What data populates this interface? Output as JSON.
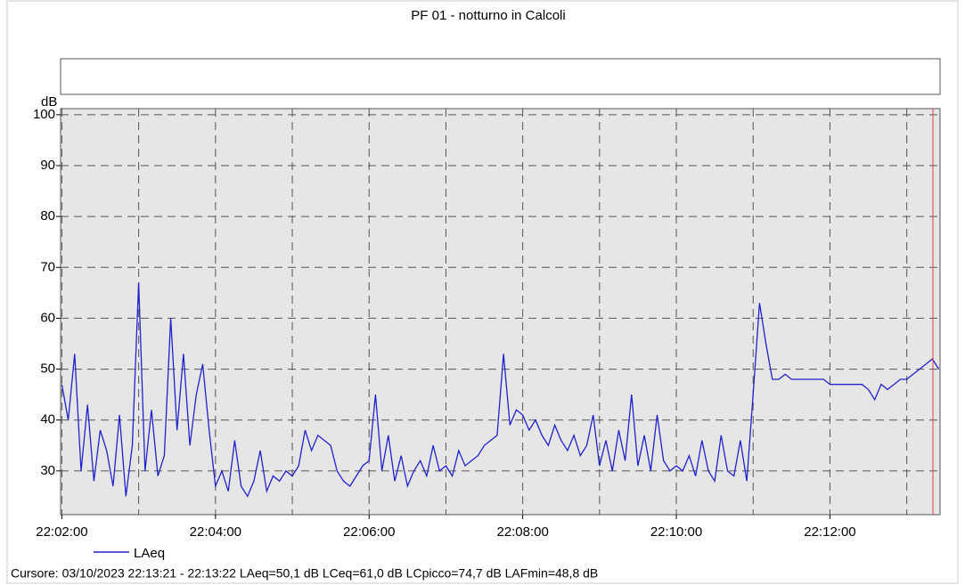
{
  "chart_data": {
    "type": "line",
    "title": "PF 01 - notturno in Calcoli",
    "y_unit": "dB",
    "x": [
      "22:02:00",
      "22:02:05",
      "22:02:10",
      "22:02:15",
      "22:02:20",
      "22:02:25",
      "22:02:30",
      "22:02:35",
      "22:02:40",
      "22:02:45",
      "22:02:50",
      "22:02:55",
      "22:03:00",
      "22:03:05",
      "22:03:10",
      "22:03:15",
      "22:03:20",
      "22:03:25",
      "22:03:30",
      "22:03:35",
      "22:03:40",
      "22:03:45",
      "22:03:50",
      "22:03:55",
      "22:04:00",
      "22:04:05",
      "22:04:10",
      "22:04:15",
      "22:04:20",
      "22:04:25",
      "22:04:30",
      "22:04:35",
      "22:04:40",
      "22:04:45",
      "22:04:50",
      "22:04:55",
      "22:05:00",
      "22:05:05",
      "22:05:10",
      "22:05:15",
      "22:05:20",
      "22:05:25",
      "22:05:30",
      "22:05:35",
      "22:05:40",
      "22:05:45",
      "22:05:50",
      "22:05:55",
      "22:06:00",
      "22:06:05",
      "22:06:10",
      "22:06:15",
      "22:06:20",
      "22:06:25",
      "22:06:30",
      "22:06:35",
      "22:06:40",
      "22:06:45",
      "22:06:50",
      "22:06:55",
      "22:07:00",
      "22:07:05",
      "22:07:10",
      "22:07:15",
      "22:07:20",
      "22:07:25",
      "22:07:30",
      "22:07:35",
      "22:07:40",
      "22:07:45",
      "22:07:50",
      "22:07:55",
      "22:08:00",
      "22:08:05",
      "22:08:10",
      "22:08:15",
      "22:08:20",
      "22:08:25",
      "22:08:30",
      "22:08:35",
      "22:08:40",
      "22:08:45",
      "22:08:50",
      "22:08:55",
      "22:09:00",
      "22:09:05",
      "22:09:10",
      "22:09:15",
      "22:09:20",
      "22:09:25",
      "22:09:30",
      "22:09:35",
      "22:09:40",
      "22:09:45",
      "22:09:50",
      "22:09:55",
      "22:10:00",
      "22:10:05",
      "22:10:10",
      "22:10:15",
      "22:10:20",
      "22:10:25",
      "22:10:30",
      "22:10:35",
      "22:10:40",
      "22:10:45",
      "22:10:50",
      "22:10:55",
      "22:11:00",
      "22:11:05",
      "22:11:10",
      "22:11:15",
      "22:11:20",
      "22:11:25",
      "22:11:30",
      "22:11:35",
      "22:11:40",
      "22:11:45",
      "22:11:50",
      "22:11:55",
      "22:12:00",
      "22:12:05",
      "22:12:10",
      "22:12:15",
      "22:12:20",
      "22:12:25",
      "22:12:30",
      "22:12:35",
      "22:12:40",
      "22:12:45",
      "22:12:50",
      "22:12:55",
      "22:13:00",
      "22:13:05",
      "22:13:10",
      "22:13:15",
      "22:13:20",
      "22:13:25"
    ],
    "series": [
      {
        "name": "LAeq",
        "color": "#2222cc",
        "values": [
          47,
          40,
          53,
          30,
          43,
          28,
          38,
          34,
          27,
          41,
          25,
          35,
          67,
          30,
          42,
          29,
          33,
          60,
          38,
          53,
          35,
          45,
          51,
          38,
          27,
          30,
          26,
          36,
          27,
          25,
          28,
          34,
          26,
          29,
          28,
          30,
          29,
          31,
          38,
          34,
          37,
          36,
          35,
          30,
          28,
          27,
          29,
          31,
          32,
          45,
          30,
          37,
          28,
          33,
          27,
          30,
          32,
          29,
          35,
          30,
          31,
          29,
          34,
          31,
          32,
          33,
          35,
          36,
          37,
          53,
          39,
          42,
          41,
          38,
          40,
          37,
          35,
          39,
          36,
          34,
          37,
          33,
          35,
          41,
          31,
          36,
          30,
          38,
          32,
          45,
          31,
          37,
          30,
          41,
          32,
          30,
          31,
          30,
          33,
          29,
          36,
          30,
          28,
          37,
          30,
          29,
          36,
          28,
          45,
          63,
          55,
          48,
          48,
          49,
          48,
          48,
          48,
          48,
          48,
          48,
          47,
          47,
          47,
          47,
          47,
          47,
          46,
          44,
          47,
          46,
          47,
          48,
          48,
          49,
          50,
          51,
          52,
          50
        ]
      }
    ],
    "xlim": [
      "22:01:59",
      "22:13:26"
    ],
    "xticks": [
      "22:02:00",
      "22:04:00",
      "22:06:00",
      "22:08:00",
      "22:10:00",
      "22:12:00"
    ],
    "xminor": [
      "22:03:00",
      "22:05:00",
      "22:07:00",
      "22:09:00",
      "22:11:00",
      "22:13:00"
    ],
    "ylim": [
      21.4,
      101.2
    ],
    "yticks": [
      30,
      40,
      50,
      60,
      70,
      80,
      90,
      100
    ],
    "grid": true,
    "footer": "Cursore: 03/10/2023 22:13:21 - 22:13:22  LAeq=50,1 dB  LCeq=61,0 dB  LCpicco=74,7 dB  LAFmin=48,8 dB"
  }
}
